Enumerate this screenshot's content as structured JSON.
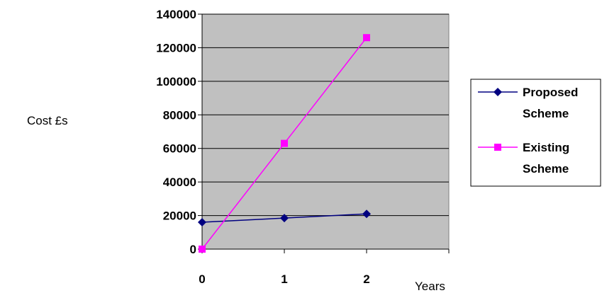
{
  "chart_data": {
    "type": "line",
    "title": "",
    "xlabel": "Years",
    "ylabel": "Cost £s",
    "x": [
      0,
      1,
      2
    ],
    "x_tick_labels": [
      "0",
      "1",
      "2"
    ],
    "xlim": [
      0,
      3
    ],
    "ylim": [
      0,
      140000
    ],
    "y_ticks": [
      0,
      20000,
      40000,
      60000,
      80000,
      100000,
      120000,
      140000
    ],
    "y_tick_labels": [
      "0",
      "20000",
      "40000",
      "60000",
      "80000",
      "100000",
      "120000",
      "140000"
    ],
    "grid": "horizontal",
    "plot_background": "#c0c0c0",
    "legend_position": "right",
    "series": [
      {
        "name": "Proposed Scheme",
        "legend_lines": [
          "Proposed",
          "Scheme"
        ],
        "values": [
          16000,
          18500,
          21000
        ],
        "color": "#000080",
        "marker": "diamond"
      },
      {
        "name": "Existing Scheme",
        "legend_lines": [
          "Existing",
          "Scheme"
        ],
        "values": [
          0,
          63000,
          126000
        ],
        "color": "#ff00ff",
        "marker": "square"
      }
    ]
  }
}
